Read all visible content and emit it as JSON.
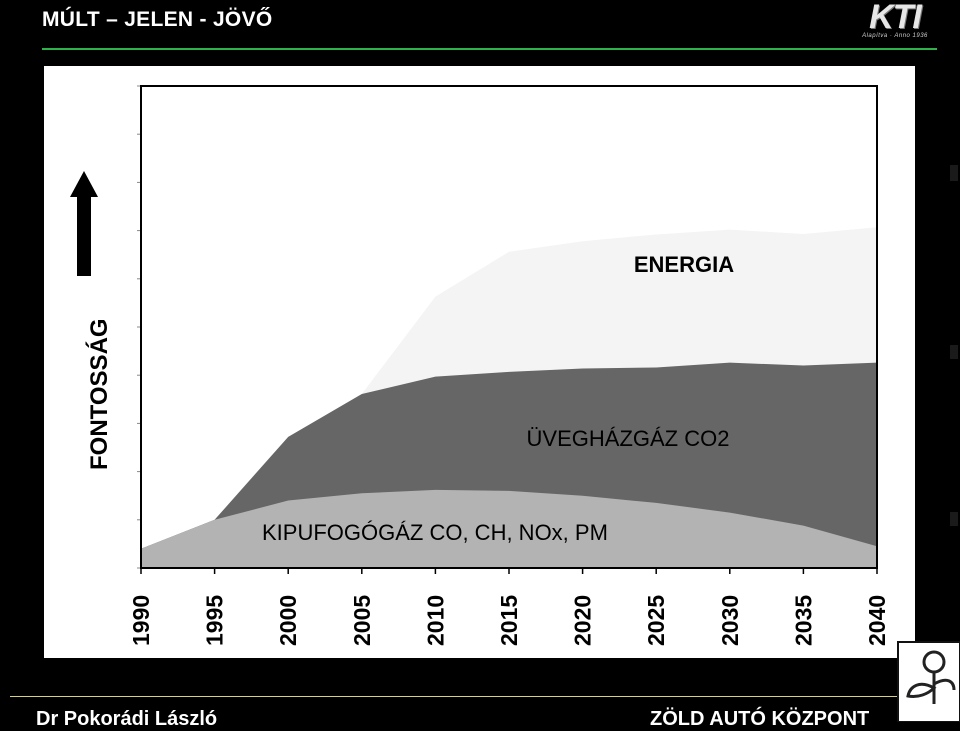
{
  "header": {
    "title": "MÚLT – JELEN - JÖVŐ"
  },
  "logo": {
    "text": "KTI",
    "subtitle": "Alapítva · Anno 1936"
  },
  "footer": {
    "left": "Dr Pokorádi László",
    "right": "ZÖLD AUTÓ KÖZPONT"
  },
  "colors": {
    "background": "#000000",
    "accent_rule": "#2db34a",
    "energia": "#f4f4f4",
    "uveghazgaz": "#666666",
    "kipufogogaz": "#b3b3b3"
  },
  "chart_data": {
    "type": "area",
    "title": "",
    "xlabel": "",
    "ylabel": "FONTOSSÁG",
    "x": [
      1990,
      1995,
      2000,
      2005,
      2010,
      2015,
      2020,
      2025,
      2030,
      2035,
      2040
    ],
    "tick_labels": [
      "1990",
      "1995",
      "2000",
      "2005",
      "2010",
      "2015",
      "2020",
      "2025",
      "2030",
      "2035",
      "2040"
    ],
    "xlim": [
      1990,
      2040
    ],
    "ylim": [
      0,
      100
    ],
    "stacked": true,
    "series": [
      {
        "name": "KIPUFOGÓGÁZ CO, CH, NOx, PM",
        "label": "KIPUFOGÓGÁZ CO, CH, NOx, PM",
        "color": "#b3b3b3",
        "values": [
          4,
          10,
          14,
          15.5,
          16.2,
          16,
          15,
          13.5,
          11.5,
          8.8,
          4.5
        ]
      },
      {
        "name": "ÜVEGHÁZGÁZ CO2",
        "label": "ÜVEGHÁZGÁZ CO2",
        "color": "#666666",
        "values": [
          0,
          0,
          13.2,
          20.6,
          23.5,
          24.7,
          26.4,
          28.1,
          31.1,
          33.2,
          38.1
        ]
      },
      {
        "name": "ENERGIA",
        "label": "ENERGIA",
        "color": "#f4f4f4",
        "values": [
          0,
          0,
          0,
          0,
          16.6,
          24.9,
          26.4,
          27.6,
          27.6,
          27.3,
          28.1
        ]
      }
    ]
  }
}
